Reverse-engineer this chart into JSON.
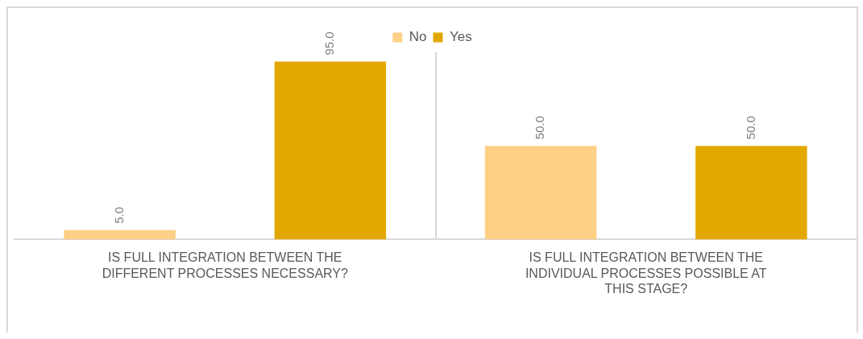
{
  "chart_data": {
    "type": "bar",
    "categories": [
      "IS FULL INTEGRATION BETWEEN THE DIFFERENT PROCESSES NECESSARY?",
      "IS FULL INTEGRATION BETWEEN THE INDIVIDUAL PROCESSES POSSIBLE AT THIS STAGE?"
    ],
    "series": [
      {
        "name": "No",
        "color": "#fdd086",
        "values": [
          5,
          50
        ],
        "value_labels": [
          "5.0",
          "50.0"
        ]
      },
      {
        "name": "Yes",
        "color": "#e2a800",
        "values": [
          95,
          50
        ],
        "value_labels": [
          "95.0",
          "50.0"
        ]
      }
    ],
    "legend": "top",
    "grid": "x",
    "relative": false
  }
}
